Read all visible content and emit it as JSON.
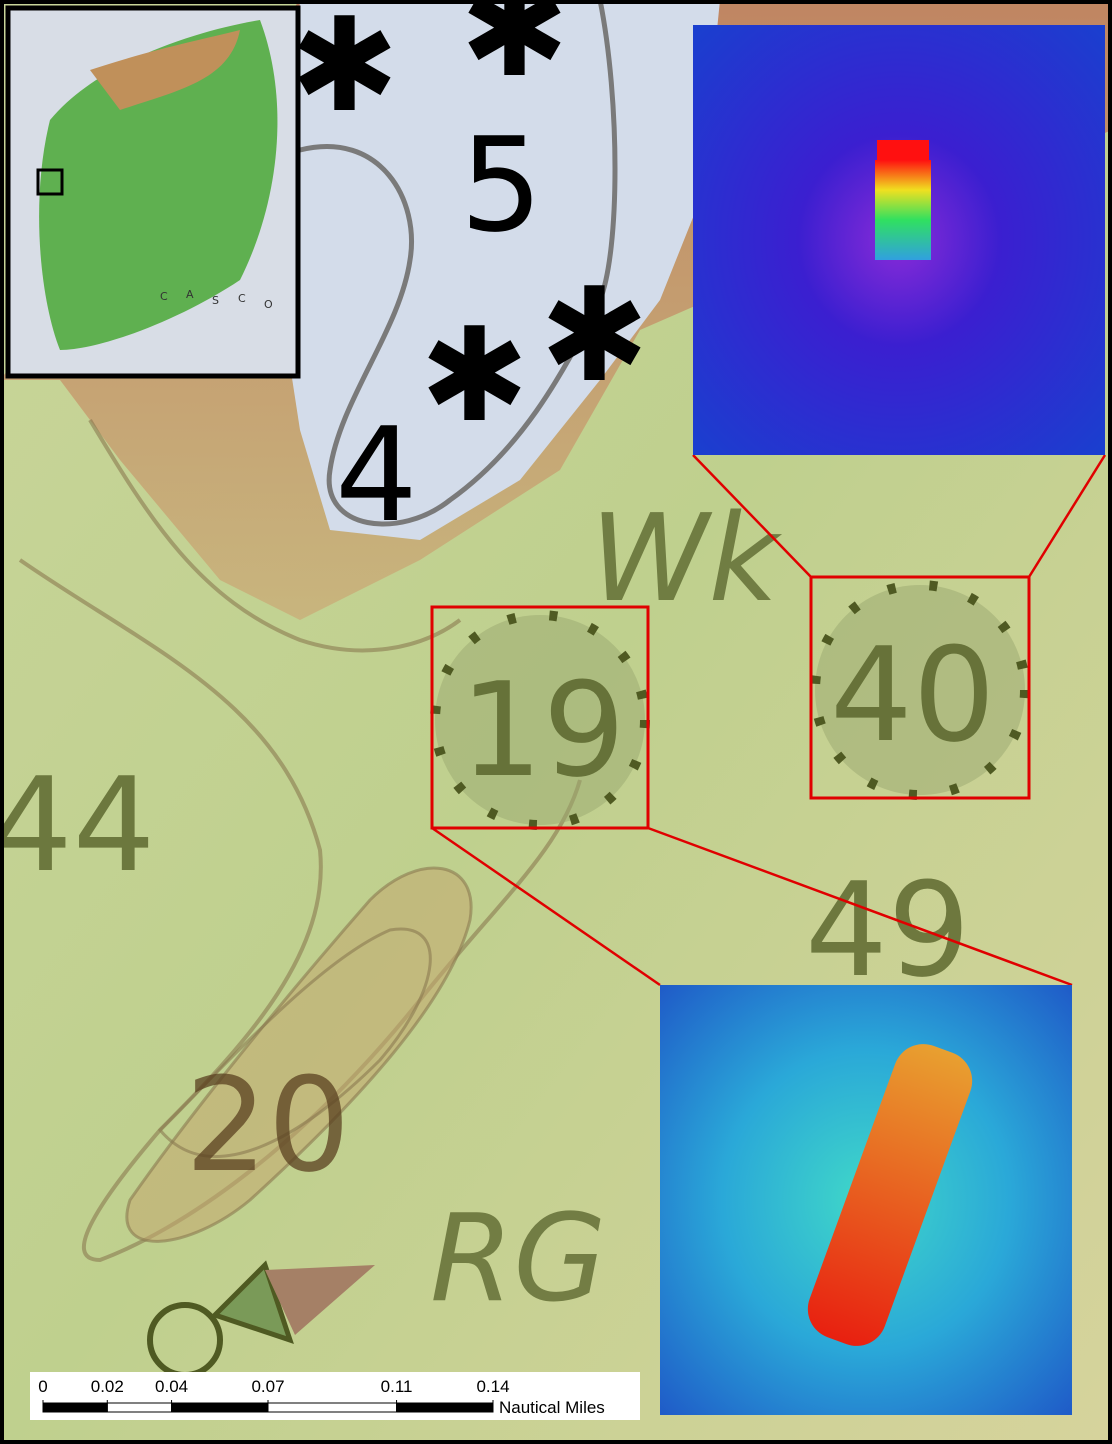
{
  "soundings": [
    "5",
    "4",
    "19",
    "40",
    "49",
    "44",
    "20"
  ],
  "labels": [
    "Wk",
    "RG"
  ],
  "inset": {
    "letters": [
      "C",
      "A",
      "S",
      "C",
      "O"
    ]
  },
  "scale_bar": {
    "ticks": [
      0,
      0.02,
      0.04,
      0.07,
      0.11,
      0.14
    ],
    "unit": "Nautical Miles"
  }
}
